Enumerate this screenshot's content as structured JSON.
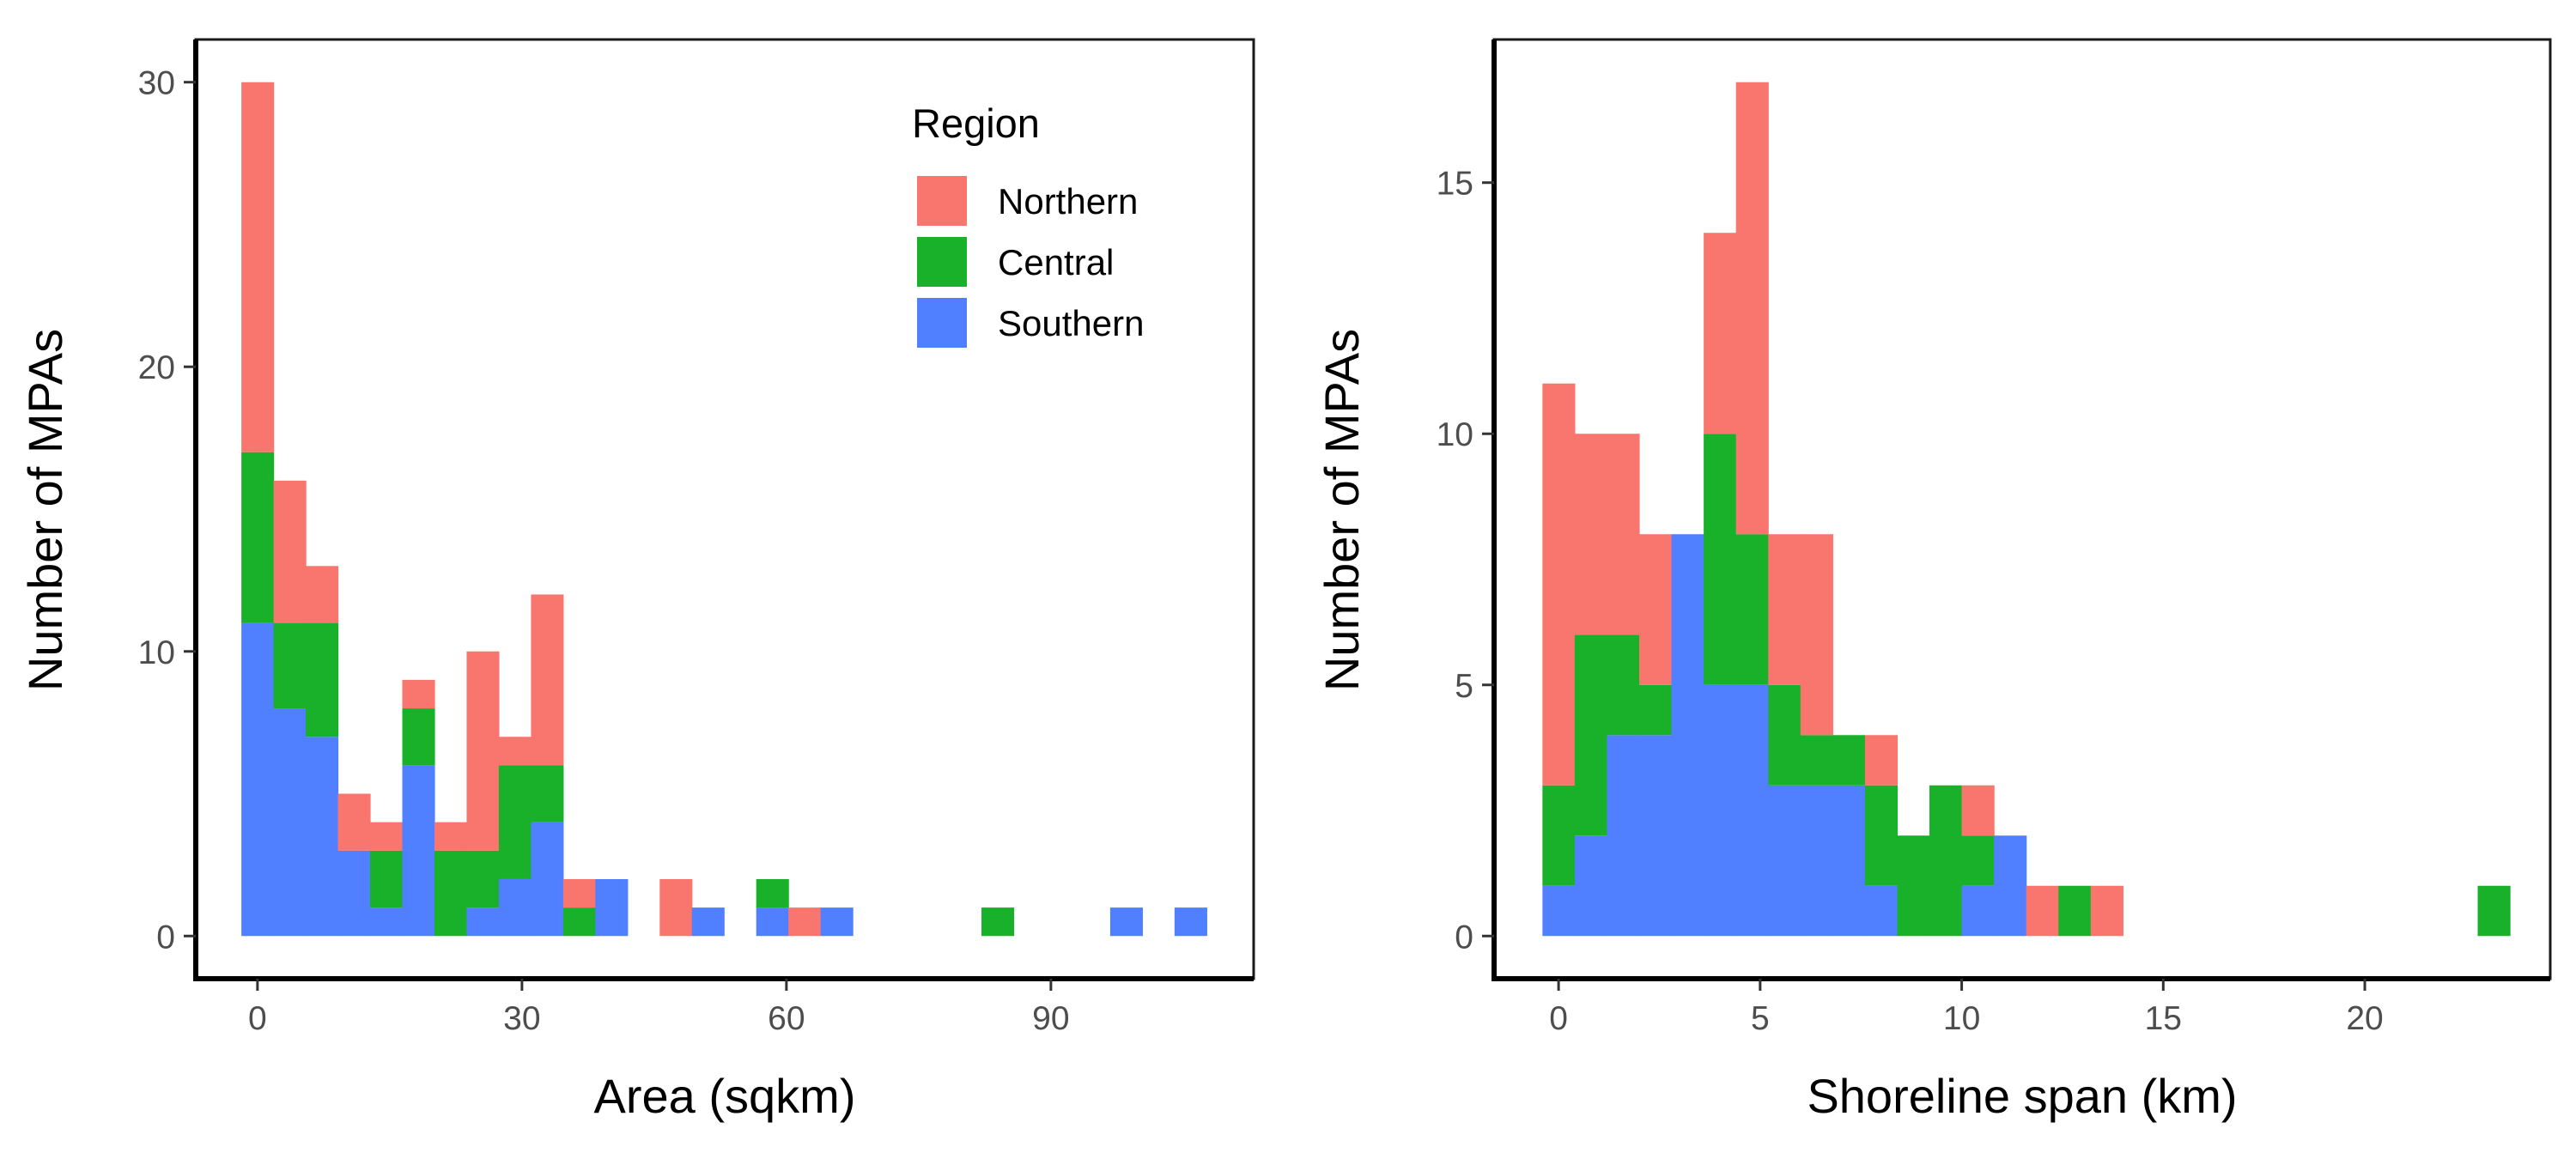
{
  "colors": {
    "Northern": "#f8766d",
    "Central": "#19b02a",
    "Southern": "#5080ff"
  },
  "legend": {
    "title": "Region",
    "placement": "top-right of left panel",
    "entries": [
      {
        "key": "Northern",
        "label": "Northern"
      },
      {
        "key": "Central",
        "label": "Central"
      },
      {
        "key": "Southern",
        "label": "Southern"
      }
    ]
  },
  "chart_data": [
    {
      "type": "bar",
      "stacked": true,
      "xlabel": "Area (sqkm)",
      "ylabel": "Number of MPAs",
      "xlim": [
        -7,
        113
      ],
      "ylim": [
        -1.5,
        31.5
      ],
      "xticks": [
        0,
        30,
        60,
        90
      ],
      "yticks": [
        0,
        10,
        20,
        30
      ],
      "x": [
        0,
        3.65,
        7.3,
        10.95,
        14.6,
        18.25,
        21.9,
        25.55,
        29.2,
        32.85,
        36.5,
        40.15,
        47.45,
        51.1,
        58.4,
        62.05,
        65.7,
        83.95,
        98.55,
        105.85
      ],
      "series": [
        {
          "name": "Southern",
          "values": [
            11,
            8,
            7,
            3,
            1,
            6,
            0,
            1,
            2,
            4,
            0,
            2,
            0,
            1,
            1,
            0,
            1,
            0,
            1,
            1
          ]
        },
        {
          "name": "Central",
          "values": [
            6,
            3,
            4,
            0,
            2,
            2,
            3,
            2,
            4,
            2,
            1,
            0,
            0,
            0,
            1,
            0,
            0,
            1,
            0,
            0
          ]
        },
        {
          "name": "Northern",
          "values": [
            13,
            5,
            2,
            2,
            1,
            1,
            1,
            7,
            1,
            6,
            1,
            0,
            2,
            0,
            0,
            1,
            0,
            0,
            0,
            0
          ]
        }
      ]
    },
    {
      "type": "bar",
      "stacked": true,
      "xlabel": "Shoreline span (km)",
      "ylabel": "Number of MPAs",
      "xlim": [
        -1.6,
        24.6
      ],
      "ylim": [
        -0.85,
        17.85
      ],
      "xticks": [
        0,
        5,
        10,
        15,
        20
      ],
      "yticks": [
        0,
        5,
        10,
        15
      ],
      "x": [
        0,
        0.8,
        1.6,
        2.4,
        3.2,
        4.0,
        4.8,
        5.6,
        6.4,
        7.2,
        8.0,
        8.8,
        9.6,
        10.4,
        11.2,
        12.0,
        12.8,
        13.6,
        23.2
      ],
      "series": [
        {
          "name": "Southern",
          "values": [
            1,
            2,
            4,
            4,
            8,
            5,
            5,
            3,
            3,
            3,
            1,
            0,
            0,
            1,
            2,
            0,
            0,
            0,
            0
          ]
        },
        {
          "name": "Central",
          "values": [
            2,
            4,
            2,
            1,
            0,
            5,
            3,
            2,
            1,
            1,
            2,
            2,
            3,
            1,
            0,
            0,
            1,
            0,
            1
          ]
        },
        {
          "name": "Northern",
          "values": [
            8,
            4,
            4,
            3,
            0,
            4,
            9,
            3,
            4,
            0,
            1,
            0,
            0,
            1,
            0,
            1,
            0,
            1,
            0
          ]
        }
      ]
    }
  ]
}
